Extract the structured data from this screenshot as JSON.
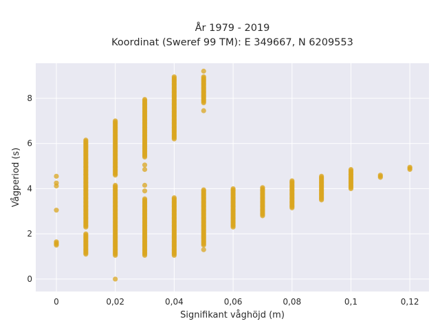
{
  "chart_data": {
    "type": "scatter",
    "title_line1": "År 1979 - 2019",
    "title_line2": "Koordinat (Sweref 99 TM): E 349667, N 6209553",
    "xlabel": "Signifikant våghöjd (m)",
    "ylabel": "Vågperiod (s)",
    "xlim": [
      -0.007,
      0.1265
    ],
    "ylim": [
      -0.55,
      9.55
    ],
    "x_ticks": [
      0,
      0.02,
      0.04,
      0.06,
      0.08,
      0.1,
      0.12
    ],
    "x_tick_labels": [
      "0",
      "0,02",
      "0,04",
      "0,06",
      "0,08",
      "0,1",
      "0,12"
    ],
    "y_ticks": [
      0,
      2,
      4,
      6,
      8
    ],
    "y_tick_labels": [
      "0",
      "2",
      "4",
      "6",
      "8"
    ],
    "grid": true,
    "marker_color": "#DAA520",
    "plot_background": "#E9E9F2",
    "series": [
      {
        "ranges": [
          {
            "x": 0,
            "y": [
              1.5,
              1.68
            ]
          },
          {
            "x": 0.01,
            "y": [
              1.1,
              2.0
            ]
          },
          {
            "x": 0.01,
            "y": [
              2.3,
              6.15
            ]
          },
          {
            "x": 0.02,
            "y": [
              1.05,
              4.15
            ]
          },
          {
            "x": 0.02,
            "y": [
              4.6,
              7.0
            ]
          },
          {
            "x": 0.03,
            "y": [
              1.05,
              3.55
            ]
          },
          {
            "x": 0.03,
            "y": [
              5.4,
              7.95
            ]
          },
          {
            "x": 0.04,
            "y": [
              1.05,
              3.6
            ]
          },
          {
            "x": 0.04,
            "y": [
              6.25,
              8.95
            ]
          },
          {
            "x": 0.05,
            "y": [
              1.5,
              3.95
            ]
          },
          {
            "x": 0.05,
            "y": [
              7.8,
              8.95
            ]
          },
          {
            "x": 0.06,
            "y": [
              2.3,
              4.0
            ]
          },
          {
            "x": 0.07,
            "y": [
              2.8,
              4.05
            ]
          },
          {
            "x": 0.08,
            "y": [
              3.15,
              4.35
            ]
          },
          {
            "x": 0.09,
            "y": [
              3.5,
              4.55
            ]
          },
          {
            "x": 0.1,
            "y": [
              4.0,
              4.85
            ]
          },
          {
            "x": 0.11,
            "y": [
              4.5,
              4.62
            ]
          },
          {
            "x": 0.12,
            "y": [
              4.85,
              4.95
            ]
          }
        ],
        "points": [
          {
            "x": 0,
            "y": 4.55
          },
          {
            "x": 0,
            "y": 4.25
          },
          {
            "x": 0,
            "y": 4.12
          },
          {
            "x": 0,
            "y": 3.05
          },
          {
            "x": 0.02,
            "y": 0.0
          },
          {
            "x": 0.03,
            "y": 4.15
          },
          {
            "x": 0.03,
            "y": 3.9
          },
          {
            "x": 0.03,
            "y": 5.05
          },
          {
            "x": 0.03,
            "y": 4.85
          },
          {
            "x": 0.04,
            "y": 6.2
          },
          {
            "x": 0.05,
            "y": 9.2
          },
          {
            "x": 0.05,
            "y": 7.45
          },
          {
            "x": 0.05,
            "y": 1.3
          }
        ]
      }
    ]
  }
}
